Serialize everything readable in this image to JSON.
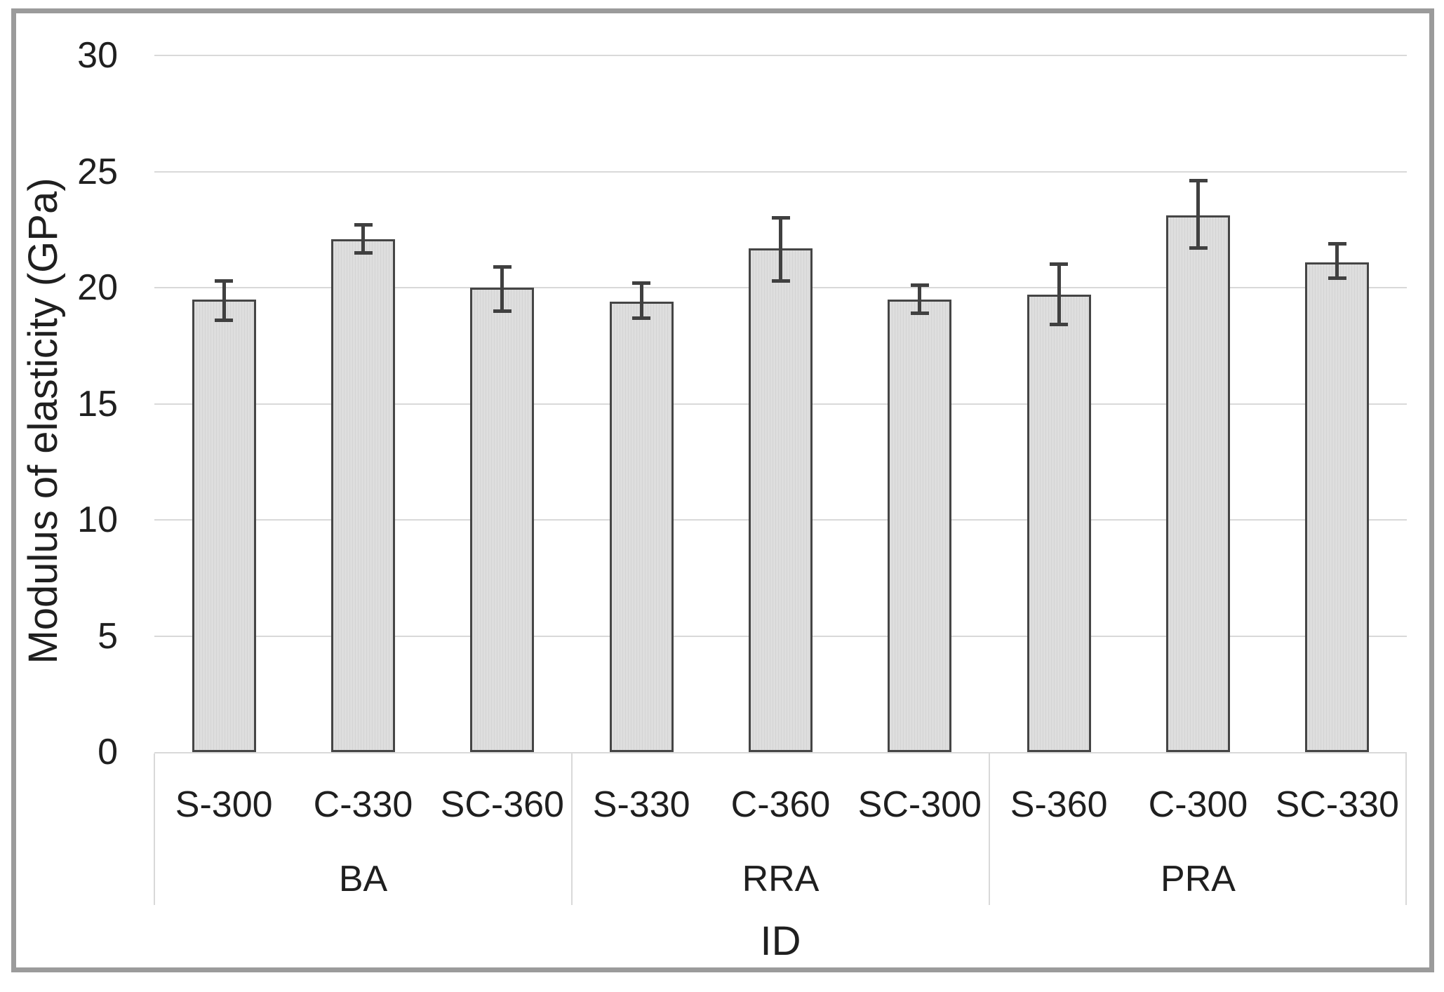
{
  "chart_data": {
    "type": "bar",
    "title": "",
    "ylabel": "Modulus of elasticity (GPa)",
    "xlabel": "ID",
    "ylim": [
      0,
      30
    ],
    "yticks": [
      0,
      5,
      10,
      15,
      20,
      25,
      30
    ],
    "grid": "horizontal",
    "legend": "none",
    "groups": [
      {
        "label": "BA",
        "categories": [
          "S-300",
          "C-330",
          "SC-360"
        ]
      },
      {
        "label": "RRA",
        "categories": [
          "S-330",
          "C-360",
          "SC-300"
        ]
      },
      {
        "label": "PRA",
        "categories": [
          "S-360",
          "C-300",
          "SC-330"
        ]
      }
    ],
    "categories": [
      "S-300",
      "C-330",
      "SC-360",
      "S-330",
      "C-360",
      "SC-300",
      "S-360",
      "C-300",
      "SC-330"
    ],
    "series": [
      {
        "name": "Modulus of elasticity",
        "values": [
          19.5,
          22.1,
          20.0,
          19.4,
          21.7,
          19.5,
          19.7,
          23.1,
          21.1
        ],
        "error_high": [
          20.3,
          22.7,
          20.9,
          20.2,
          23.0,
          20.1,
          21.0,
          24.6,
          21.9
        ],
        "error_low": [
          18.6,
          21.5,
          19.0,
          18.7,
          20.3,
          18.9,
          18.4,
          21.7,
          20.4
        ]
      }
    ],
    "colors": {
      "bar_fill": "#dcdcdc",
      "bar_border": "#454545",
      "error_bar": "#404040",
      "gridline": "#d9d9d9",
      "axis_box_line": "#d9d9d9",
      "figure_border": "#9b9b9b",
      "text": "#1f1f1f",
      "background": "#ffffff"
    }
  }
}
